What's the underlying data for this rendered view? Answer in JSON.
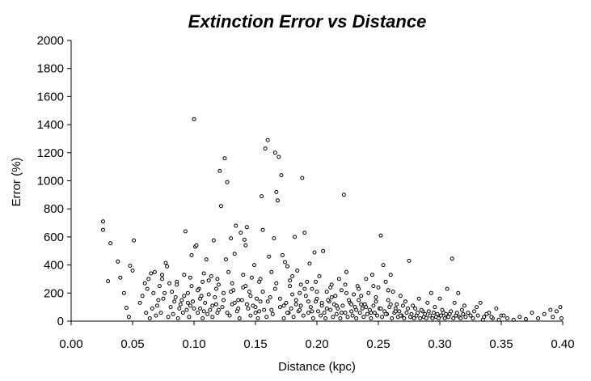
{
  "chart_data": {
    "type": "scatter",
    "title": "Extinction Error vs Distance",
    "xlabel": "Distance (kpc)",
    "ylabel": "Error (%)",
    "xlim": [
      0,
      0.4
    ],
    "ylim": [
      0,
      2000
    ],
    "x_ticks": [
      "0.00",
      "0.05",
      "0.10",
      "0.15",
      "0.20",
      "0.25",
      "0.30",
      "0.35",
      "0.40"
    ],
    "y_ticks": [
      "0",
      "200",
      "400",
      "600",
      "800",
      "1000",
      "1200",
      "1400",
      "1600",
      "1800",
      "2000"
    ],
    "grid": false,
    "legend": "none",
    "colors": {
      "marker_fill": "#ffffff",
      "marker_edge": "#000000",
      "axes": "#000000",
      "background": "#ffffff"
    },
    "points": [
      [
        0.026,
        710
      ],
      [
        0.026,
        650
      ],
      [
        0.03,
        285
      ],
      [
        0.032,
        555
      ],
      [
        0.038,
        425
      ],
      [
        0.04,
        310
      ],
      [
        0.043,
        200
      ],
      [
        0.045,
        95
      ],
      [
        0.047,
        30
      ],
      [
        0.048,
        395
      ],
      [
        0.05,
        360
      ],
      [
        0.051,
        575
      ],
      [
        0.056,
        130
      ],
      [
        0.058,
        180
      ],
      [
        0.06,
        270
      ],
      [
        0.062,
        230
      ],
      [
        0.065,
        340
      ],
      [
        0.067,
        200
      ],
      [
        0.068,
        350
      ],
      [
        0.07,
        110
      ],
      [
        0.072,
        250
      ],
      [
        0.074,
        300
      ],
      [
        0.075,
        160
      ],
      [
        0.077,
        415
      ],
      [
        0.078,
        390
      ],
      [
        0.08,
        270
      ],
      [
        0.082,
        210
      ],
      [
        0.084,
        140
      ],
      [
        0.086,
        280
      ],
      [
        0.088,
        90
      ],
      [
        0.09,
        150
      ],
      [
        0.092,
        330
      ],
      [
        0.093,
        640
      ],
      [
        0.095,
        200
      ],
      [
        0.097,
        110
      ],
      [
        0.098,
        470
      ],
      [
        0.1,
        1440
      ],
      [
        0.101,
        530
      ],
      [
        0.102,
        540
      ],
      [
        0.104,
        230
      ],
      [
        0.106,
        180
      ],
      [
        0.108,
        340
      ],
      [
        0.11,
        440
      ],
      [
        0.112,
        290
      ],
      [
        0.114,
        320
      ],
      [
        0.116,
        575
      ],
      [
        0.118,
        120
      ],
      [
        0.12,
        260
      ],
      [
        0.121,
        1070
      ],
      [
        0.122,
        820
      ],
      [
        0.124,
        200
      ],
      [
        0.125,
        1160
      ],
      [
        0.126,
        440
      ],
      [
        0.127,
        990
      ],
      [
        0.128,
        350
      ],
      [
        0.13,
        590
      ],
      [
        0.132,
        220
      ],
      [
        0.133,
        480
      ],
      [
        0.134,
        680
      ],
      [
        0.136,
        150
      ],
      [
        0.138,
        630
      ],
      [
        0.14,
        330
      ],
      [
        0.141,
        580
      ],
      [
        0.142,
        540
      ],
      [
        0.143,
        670
      ],
      [
        0.145,
        210
      ],
      [
        0.147,
        310
      ],
      [
        0.149,
        400
      ],
      [
        0.151,
        160
      ],
      [
        0.153,
        280
      ],
      [
        0.155,
        890
      ],
      [
        0.156,
        650
      ],
      [
        0.158,
        1230
      ],
      [
        0.16,
        1290
      ],
      [
        0.161,
        460
      ],
      [
        0.163,
        350
      ],
      [
        0.165,
        590
      ],
      [
        0.166,
        1200
      ],
      [
        0.167,
        920
      ],
      [
        0.168,
        860
      ],
      [
        0.169,
        1170
      ],
      [
        0.171,
        1040
      ],
      [
        0.172,
        470
      ],
      [
        0.174,
        420
      ],
      [
        0.176,
        390
      ],
      [
        0.178,
        250
      ],
      [
        0.18,
        320
      ],
      [
        0.182,
        600
      ],
      [
        0.184,
        360
      ],
      [
        0.186,
        200
      ],
      [
        0.188,
        1020
      ],
      [
        0.19,
        630
      ],
      [
        0.192,
        280
      ],
      [
        0.194,
        410
      ],
      [
        0.196,
        230
      ],
      [
        0.198,
        490
      ],
      [
        0.2,
        160
      ],
      [
        0.202,
        320
      ],
      [
        0.205,
        500
      ],
      [
        0.208,
        210
      ],
      [
        0.21,
        140
      ],
      [
        0.212,
        260
      ],
      [
        0.215,
        180
      ],
      [
        0.218,
        300
      ],
      [
        0.22,
        220
      ],
      [
        0.222,
        900
      ],
      [
        0.224,
        350
      ],
      [
        0.226,
        150
      ],
      [
        0.23,
        190
      ],
      [
        0.233,
        250
      ],
      [
        0.236,
        120
      ],
      [
        0.24,
        300
      ],
      [
        0.242,
        200
      ],
      [
        0.245,
        330
      ],
      [
        0.248,
        170
      ],
      [
        0.25,
        240
      ],
      [
        0.252,
        610
      ],
      [
        0.254,
        400
      ],
      [
        0.256,
        280
      ],
      [
        0.258,
        150
      ],
      [
        0.26,
        330
      ],
      [
        0.262,
        210
      ],
      [
        0.265,
        120
      ],
      [
        0.268,
        180
      ],
      [
        0.272,
        140
      ],
      [
        0.275,
        430
      ],
      [
        0.278,
        110
      ],
      [
        0.28,
        90
      ],
      [
        0.283,
        160
      ],
      [
        0.286,
        70
      ],
      [
        0.29,
        130
      ],
      [
        0.293,
        200
      ],
      [
        0.296,
        100
      ],
      [
        0.3,
        160
      ],
      [
        0.303,
        60
      ],
      [
        0.306,
        230
      ],
      [
        0.308,
        50
      ],
      [
        0.31,
        445
      ],
      [
        0.312,
        130
      ],
      [
        0.315,
        200
      ],
      [
        0.318,
        80
      ],
      [
        0.32,
        110
      ],
      [
        0.325,
        40
      ],
      [
        0.328,
        70
      ],
      [
        0.33,
        100
      ],
      [
        0.333,
        130
      ],
      [
        0.336,
        30
      ],
      [
        0.34,
        60
      ],
      [
        0.343,
        20
      ],
      [
        0.346,
        90
      ],
      [
        0.35,
        40
      ],
      [
        0.355,
        20
      ],
      [
        0.36,
        10
      ],
      [
        0.365,
        30
      ],
      [
        0.37,
        15
      ],
      [
        0.375,
        60
      ],
      [
        0.38,
        20
      ],
      [
        0.385,
        50
      ],
      [
        0.39,
        80
      ],
      [
        0.392,
        30
      ],
      [
        0.395,
        70
      ],
      [
        0.398,
        100
      ],
      [
        0.399,
        20
      ],
      [
        0.061,
        60
      ],
      [
        0.064,
        20
      ],
      [
        0.066,
        90
      ],
      [
        0.069,
        40
      ],
      [
        0.071,
        150
      ],
      [
        0.073,
        60
      ],
      [
        0.076,
        200
      ],
      [
        0.079,
        30
      ],
      [
        0.081,
        100
      ],
      [
        0.083,
        50
      ],
      [
        0.085,
        170
      ],
      [
        0.087,
        20
      ],
      [
        0.089,
        120
      ],
      [
        0.091,
        60
      ],
      [
        0.094,
        80
      ],
      [
        0.096,
        30
      ],
      [
        0.099,
        140
      ],
      [
        0.103,
        60
      ],
      [
        0.105,
        90
      ],
      [
        0.107,
        20
      ],
      [
        0.109,
        130
      ],
      [
        0.111,
        50
      ],
      [
        0.113,
        80
      ],
      [
        0.115,
        30
      ],
      [
        0.117,
        170
      ],
      [
        0.119,
        60
      ],
      [
        0.123,
        100
      ],
      [
        0.129,
        40
      ],
      [
        0.131,
        120
      ],
      [
        0.135,
        70
      ],
      [
        0.137,
        20
      ],
      [
        0.139,
        150
      ],
      [
        0.144,
        90
      ],
      [
        0.146,
        40
      ],
      [
        0.148,
        110
      ],
      [
        0.15,
        60
      ],
      [
        0.152,
        20
      ],
      [
        0.154,
        140
      ],
      [
        0.157,
        80
      ],
      [
        0.159,
        30
      ],
      [
        0.162,
        170
      ],
      [
        0.164,
        50
      ],
      [
        0.17,
        100
      ],
      [
        0.173,
        20
      ],
      [
        0.175,
        130
      ],
      [
        0.177,
        60
      ],
      [
        0.179,
        90
      ],
      [
        0.181,
        30
      ],
      [
        0.183,
        150
      ],
      [
        0.185,
        70
      ],
      [
        0.187,
        110
      ],
      [
        0.189,
        40
      ],
      [
        0.191,
        180
      ],
      [
        0.193,
        60
      ],
      [
        0.195,
        100
      ],
      [
        0.197,
        20
      ],
      [
        0.199,
        140
      ],
      [
        0.201,
        70
      ],
      [
        0.203,
        40
      ],
      [
        0.204,
        110
      ],
      [
        0.206,
        60
      ],
      [
        0.207,
        20
      ],
      [
        0.209,
        150
      ],
      [
        0.211,
        80
      ],
      [
        0.213,
        30
      ],
      [
        0.214,
        120
      ],
      [
        0.216,
        50
      ],
      [
        0.217,
        90
      ],
      [
        0.219,
        20
      ],
      [
        0.221,
        110
      ],
      [
        0.223,
        60
      ],
      [
        0.225,
        30
      ],
      [
        0.227,
        130
      ],
      [
        0.228,
        70
      ],
      [
        0.229,
        40
      ],
      [
        0.231,
        100
      ],
      [
        0.232,
        20
      ],
      [
        0.234,
        150
      ],
      [
        0.235,
        60
      ],
      [
        0.237,
        90
      ],
      [
        0.238,
        30
      ],
      [
        0.239,
        120
      ],
      [
        0.241,
        50
      ],
      [
        0.243,
        80
      ],
      [
        0.244,
        20
      ],
      [
        0.246,
        110
      ],
      [
        0.247,
        60
      ],
      [
        0.249,
        40
      ],
      [
        0.251,
        90
      ],
      [
        0.253,
        30
      ],
      [
        0.255,
        70
      ],
      [
        0.257,
        50
      ],
      [
        0.259,
        100
      ],
      [
        0.261,
        20
      ],
      [
        0.263,
        60
      ],
      [
        0.264,
        90
      ],
      [
        0.266,
        30
      ],
      [
        0.267,
        70
      ],
      [
        0.269,
        40
      ],
      [
        0.27,
        110
      ],
      [
        0.271,
        20
      ],
      [
        0.273,
        60
      ],
      [
        0.274,
        90
      ],
      [
        0.276,
        30
      ],
      [
        0.277,
        50
      ],
      [
        0.279,
        20
      ],
      [
        0.281,
        40
      ],
      [
        0.282,
        60
      ],
      [
        0.284,
        20
      ],
      [
        0.285,
        80
      ],
      [
        0.287,
        30
      ],
      [
        0.288,
        50
      ],
      [
        0.289,
        20
      ],
      [
        0.291,
        70
      ],
      [
        0.292,
        40
      ],
      [
        0.294,
        20
      ],
      [
        0.295,
        60
      ],
      [
        0.297,
        30
      ],
      [
        0.298,
        50
      ],
      [
        0.299,
        20
      ],
      [
        0.301,
        40
      ],
      [
        0.302,
        80
      ],
      [
        0.304,
        20
      ],
      [
        0.305,
        50
      ],
      [
        0.307,
        30
      ],
      [
        0.309,
        70
      ],
      [
        0.311,
        20
      ],
      [
        0.313,
        40
      ],
      [
        0.314,
        60
      ],
      [
        0.316,
        30
      ],
      [
        0.317,
        20
      ],
      [
        0.319,
        50
      ],
      [
        0.321,
        30
      ],
      [
        0.323,
        60
      ],
      [
        0.327,
        20
      ],
      [
        0.331,
        40
      ],
      [
        0.335,
        10
      ],
      [
        0.338,
        50
      ],
      [
        0.342,
        30
      ],
      [
        0.348,
        10
      ],
      [
        0.352,
        40
      ],
      [
        0.092,
        180
      ],
      [
        0.095,
        130
      ],
      [
        0.098,
        250
      ],
      [
        0.1,
        90
      ],
      [
        0.103,
        220
      ],
      [
        0.105,
        160
      ],
      [
        0.108,
        70
      ],
      [
        0.112,
        190
      ],
      [
        0.115,
        110
      ],
      [
        0.118,
        230
      ],
      [
        0.12,
        80
      ],
      [
        0.124,
        150
      ],
      [
        0.127,
        60
      ],
      [
        0.13,
        210
      ],
      [
        0.133,
        130
      ],
      [
        0.136,
        90
      ],
      [
        0.14,
        240
      ],
      [
        0.143,
        120
      ],
      [
        0.146,
        180
      ],
      [
        0.15,
        100
      ],
      [
        0.153,
        70
      ],
      [
        0.156,
        210
      ],
      [
        0.16,
        140
      ],
      [
        0.163,
        80
      ],
      [
        0.166,
        230
      ],
      [
        0.17,
        160
      ],
      [
        0.173,
        110
      ],
      [
        0.176,
        60
      ],
      [
        0.18,
        190
      ],
      [
        0.183,
        120
      ],
      [
        0.186,
        80
      ],
      [
        0.19,
        230
      ],
      [
        0.193,
        140
      ],
      [
        0.196,
        70
      ],
      [
        0.2,
        210
      ],
      [
        0.204,
        130
      ],
      [
        0.208,
        90
      ],
      [
        0.212,
        170
      ],
      [
        0.216,
        110
      ],
      [
        0.22,
        60
      ],
      [
        0.224,
        200
      ],
      [
        0.228,
        120
      ],
      [
        0.232,
        80
      ],
      [
        0.236,
        180
      ],
      [
        0.24,
        100
      ],
      [
        0.244,
        60
      ],
      [
        0.248,
        140
      ],
      [
        0.252,
        90
      ],
      [
        0.256,
        50
      ],
      [
        0.26,
        120
      ],
      [
        0.264,
        70
      ],
      [
        0.268,
        40
      ],
      [
        0.063,
        300
      ],
      [
        0.074,
        330
      ],
      [
        0.086,
        260
      ],
      [
        0.097,
        310
      ],
      [
        0.107,
        280
      ],
      [
        0.119,
        300
      ],
      [
        0.131,
        270
      ],
      [
        0.142,
        250
      ],
      [
        0.154,
        300
      ],
      [
        0.167,
        270
      ],
      [
        0.178,
        290
      ],
      [
        0.187,
        260
      ],
      [
        0.199,
        280
      ],
      [
        0.211,
        240
      ],
      [
        0.223,
        260
      ],
      [
        0.234,
        230
      ],
      [
        0.246,
        250
      ],
      [
        0.258,
        220
      ]
    ]
  }
}
